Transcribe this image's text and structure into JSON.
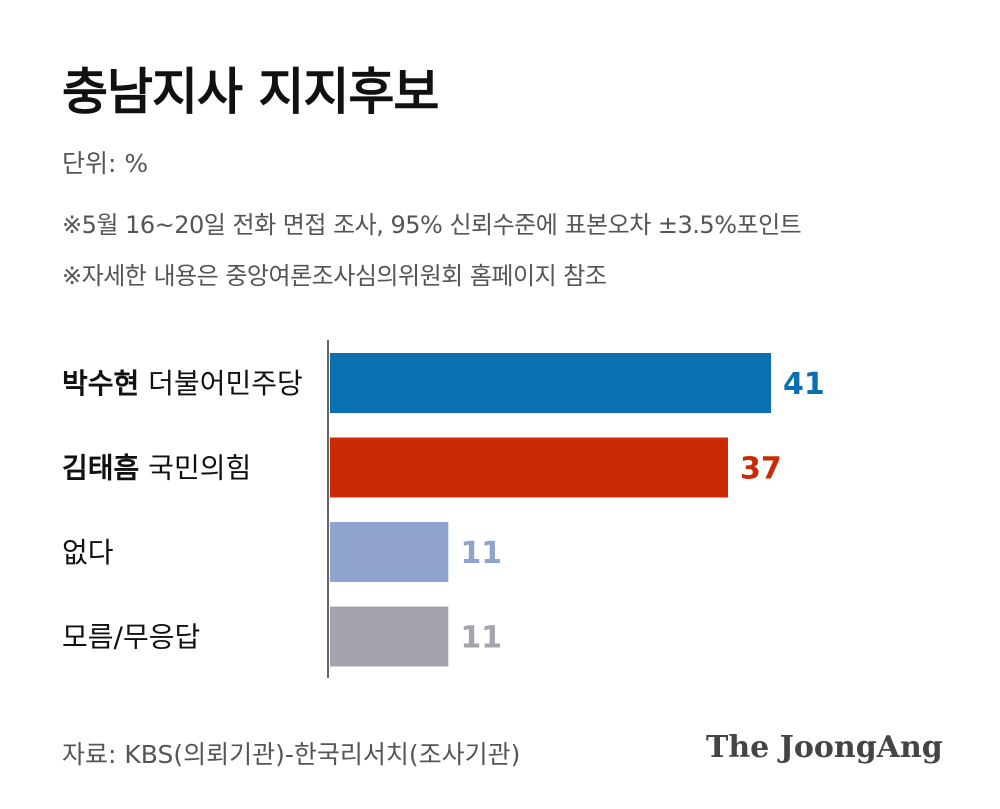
{
  "title": "충남지사 지지후보",
  "unit": "단위: %",
  "notes": [
    "※5월 16~20일 전화 면접 조사, 95% 신뢰수준에 표본오차 ±3.5%포인트",
    "※자세한 내용은 중앙여론조사심의위원회 홈페이지 참조"
  ],
  "source": "자료: KBS(의뢰기관)-한국리서치(조사기관)",
  "logo": "The JoongAng",
  "chart_data": {
    "type": "bar",
    "orientation": "horizontal",
    "categories": [
      {
        "name": "박수현",
        "party": "더불어민주당"
      },
      {
        "name": "김태흠",
        "party": "국민의힘"
      },
      {
        "name": "없다",
        "party": ""
      },
      {
        "name": "모름/무응답",
        "party": ""
      }
    ],
    "values": [
      41,
      37,
      11,
      11
    ],
    "colors": [
      "#0b70b0",
      "#cc2a05",
      "#8fa3cc",
      "#a4a4ad"
    ],
    "label_colors": [
      "#0b70b0",
      "#cc2a05",
      "#8fa3cc",
      "#a4a4ad"
    ],
    "xlim": [
      0,
      50
    ],
    "grid": false,
    "legend": "none"
  }
}
